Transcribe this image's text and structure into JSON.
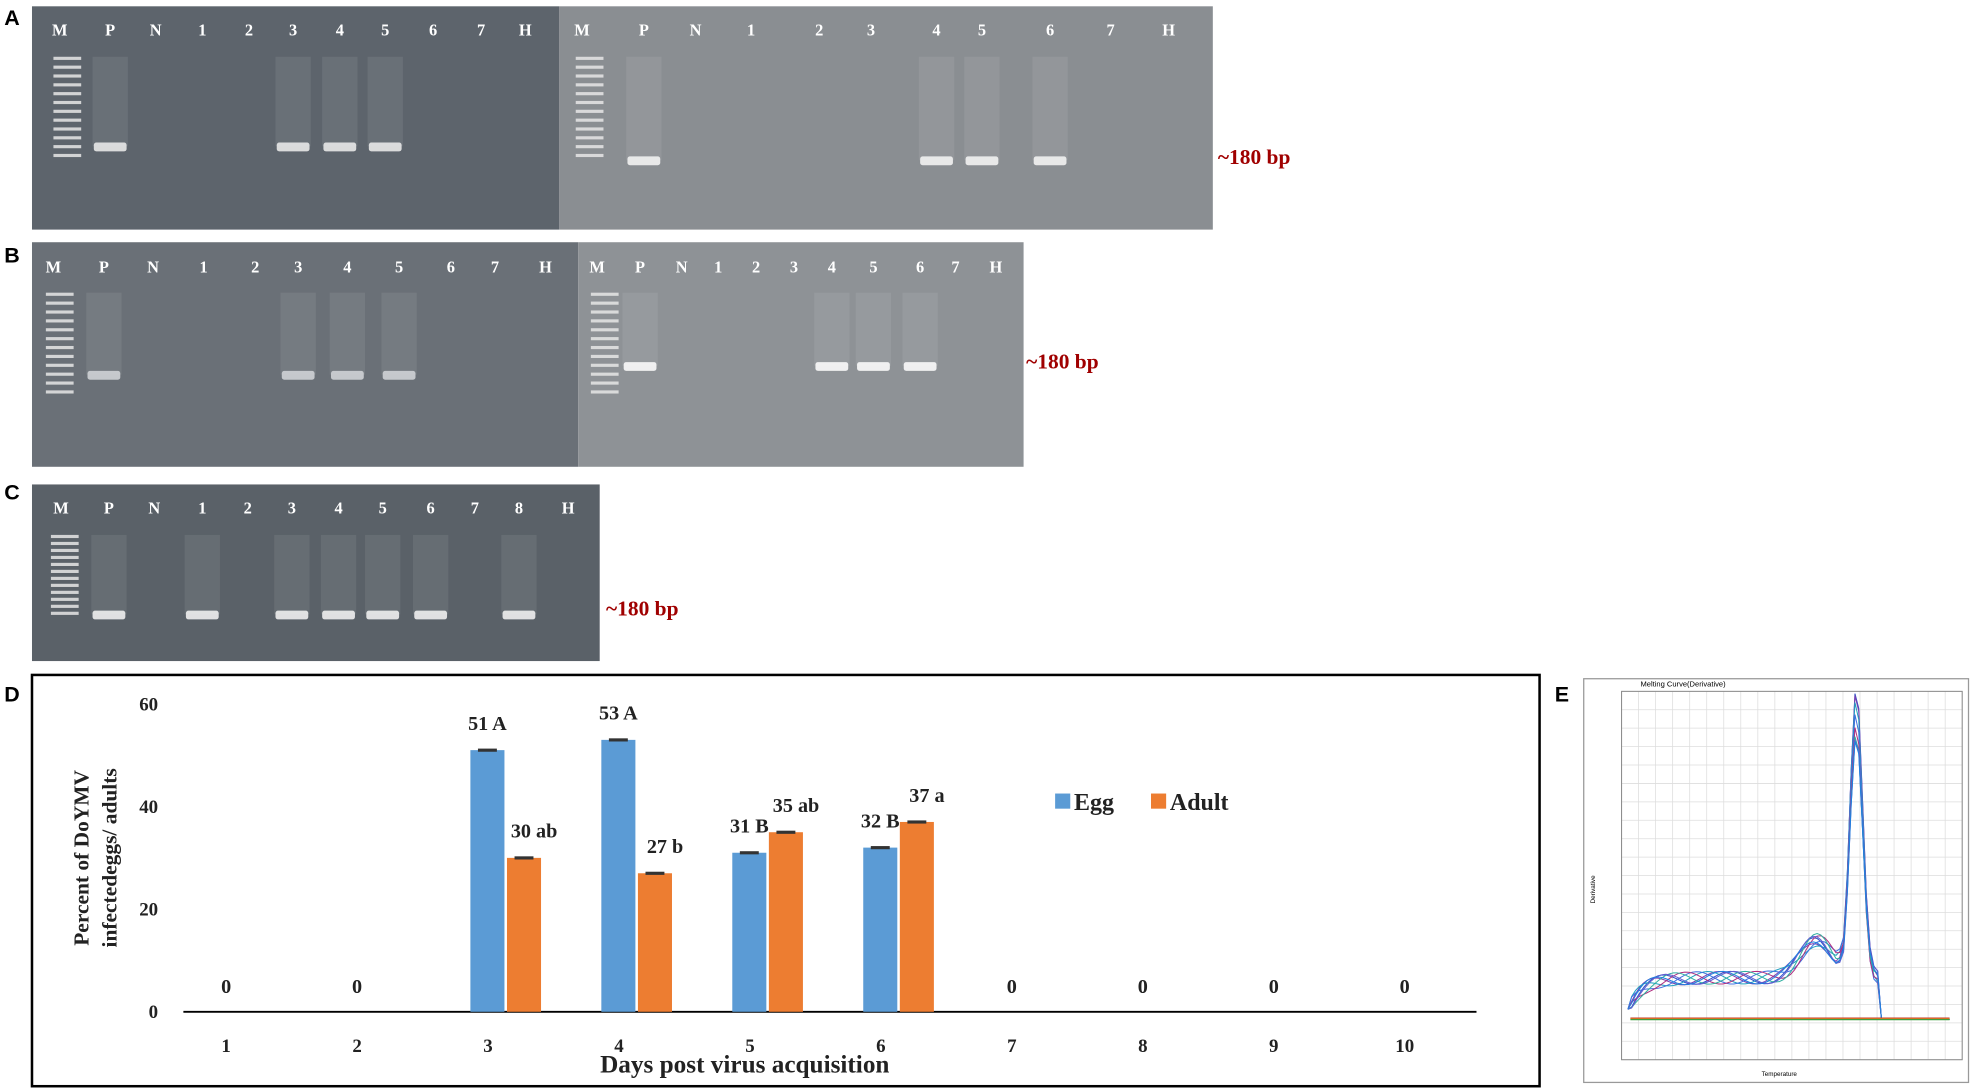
{
  "panels": [
    {
      "label": "A",
      "gels": [
        {
          "lanes": [
            "M",
            "P",
            "N",
            "1",
            "2",
            "3",
            "4",
            "5",
            "6",
            "7",
            "H"
          ]
        },
        {
          "lanes": [
            "M",
            "P",
            "N",
            "1",
            "2",
            "3",
            "4",
            "5",
            "6",
            "7",
            "H"
          ]
        }
      ],
      "size_label": "~180 bp"
    },
    {
      "label": "B",
      "gels": [
        {
          "lanes": [
            "M",
            "P",
            "N",
            "1",
            "2",
            "3",
            "4",
            "5",
            "6",
            "7",
            "H"
          ]
        },
        {
          "lanes": [
            "M",
            "P",
            "N",
            "1",
            "2",
            "3",
            "4",
            "5",
            "6",
            "7",
            "H"
          ]
        }
      ],
      "size_label": "~180 bp"
    },
    {
      "label": "C",
      "gels": [
        {
          "lanes": [
            "M",
            "P",
            "N",
            "1",
            "2",
            "3",
            "4",
            "5",
            "6",
            "7",
            "8",
            "H"
          ]
        }
      ],
      "size_label": "~180 bp"
    }
  ],
  "chart_data": {
    "type": "bar",
    "panel_label": "D",
    "ylabel": [
      "Percent of DoYMV",
      "infectedeggs/ adults"
    ],
    "xlabel": "Days post virus acquisition",
    "categories": [
      "1",
      "2",
      "3",
      "4",
      "5",
      "6",
      "7",
      "8",
      "9",
      "10"
    ],
    "series": [
      {
        "name": "Egg",
        "color": "#5b9bd5",
        "values": [
          0,
          0,
          51,
          53,
          31,
          32,
          0,
          0,
          0,
          0
        ],
        "value_labels": [
          "0",
          "0",
          "51 A",
          "53 A",
          "31 B",
          "32 B",
          "0",
          "0",
          "0",
          "0"
        ],
        "errors": [
          null,
          null,
          0.3,
          0.3,
          0.3,
          0.3,
          null,
          null,
          null,
          null
        ]
      },
      {
        "name": "Adult",
        "color": "#ed7d31",
        "values": [
          0,
          0,
          30,
          27,
          35,
          37,
          0,
          0,
          0,
          0
        ],
        "value_labels": [
          null,
          null,
          "30 ab",
          "27 b",
          "35 ab",
          "37 a",
          null,
          null,
          null,
          null
        ],
        "errors": [
          null,
          null,
          0.3,
          0.3,
          0.3,
          0.3,
          null,
          null,
          null,
          null
        ]
      }
    ],
    "ylim": [
      0,
      60
    ],
    "yticks": [
      0,
      20,
      40,
      60
    ],
    "legend_position": "right"
  },
  "panel_e": {
    "label": "E",
    "title": "Melting Curve(Derivative)",
    "ylabel": "Derivative",
    "xlabel": "Temperature"
  }
}
